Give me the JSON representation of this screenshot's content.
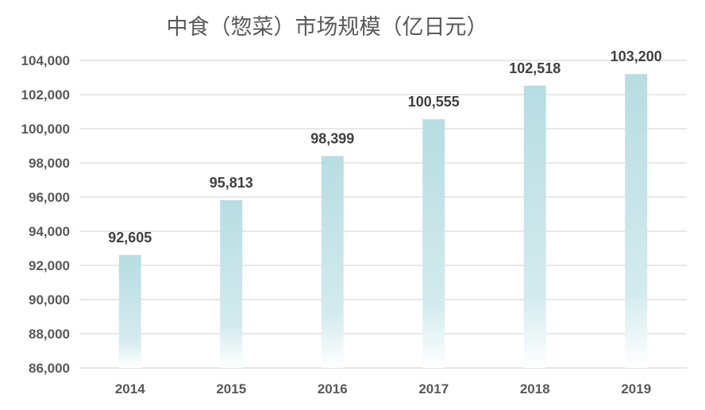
{
  "chart_data": {
    "type": "bar",
    "title": "中食（惣菜）市场规模（亿日元）",
    "categories": [
      "2014",
      "2015",
      "2016",
      "2017",
      "2018",
      "2019"
    ],
    "values": [
      92605,
      95813,
      98399,
      100555,
      102518,
      103200
    ],
    "data_labels": [
      "92,605",
      "95,813",
      "98,399",
      "100,555",
      "102,518",
      "103,200"
    ],
    "ylim": [
      86000,
      104000
    ],
    "yticks": [
      86000,
      88000,
      90000,
      92000,
      94000,
      96000,
      98000,
      100000,
      102000,
      104000
    ],
    "ytick_labels": [
      "86,000",
      "88,000",
      "90,000",
      "92,000",
      "94,000",
      "96,000",
      "98,000",
      "100,000",
      "102,000",
      "104,000"
    ],
    "xlabel": "",
    "ylabel": "",
    "grid": true,
    "legend": "none",
    "colors": {
      "bar_top": "#b7dde2",
      "bar_bottom": "#ffffff",
      "grid": "#d9d9d9",
      "axis_text": "#595959",
      "label_text": "#404040"
    }
  }
}
